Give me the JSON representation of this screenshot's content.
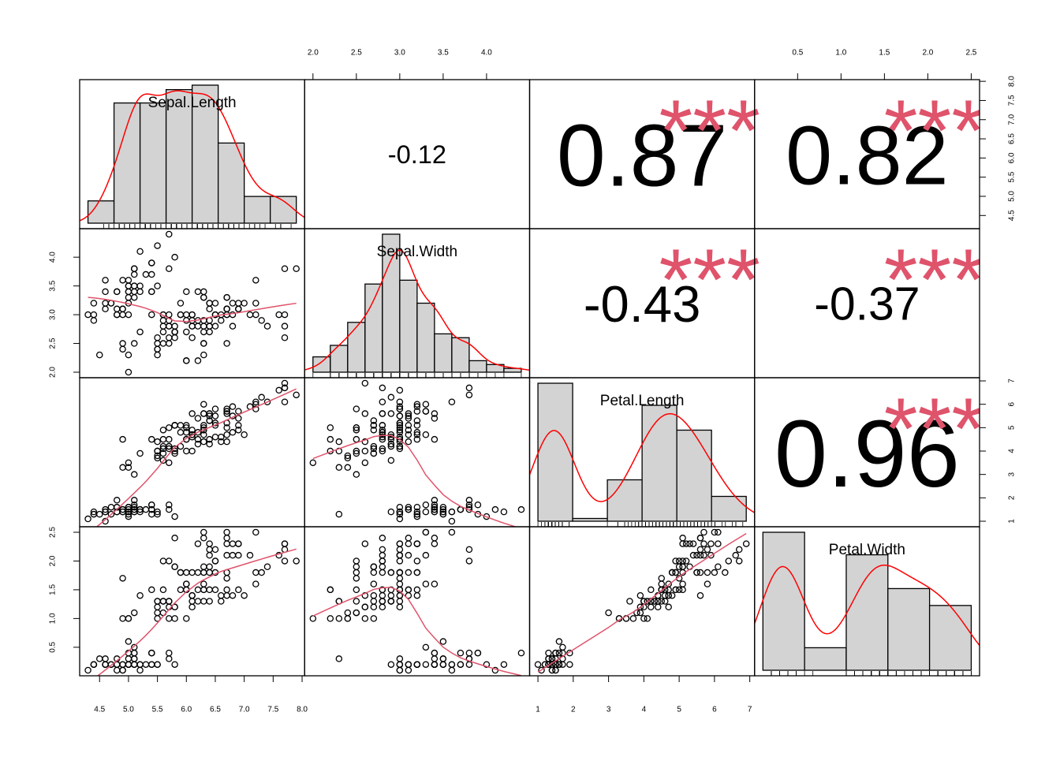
{
  "chart_data": {
    "type": "pairs",
    "hist_color": "#d3d3d3",
    "density_color": "#ff0000",
    "smooth_color": "#df536b",
    "star_color": "#df536b",
    "point_color": "#000000",
    "series": [
      {
        "name": "Sepal.Length",
        "lim": [
          4.156,
          8.044
        ],
        "ticks": [
          4.5,
          {
            "value": 5,
            "label": "5.0"
          },
          5.5,
          {
            "value": 6,
            "label": "6.0"
          },
          6.5,
          {
            "value": 7,
            "label": "7.0"
          },
          7.5,
          {
            "value": 8,
            "label": "8.0"
          }
        ],
        "hist_bins": [
          4,
          4.5,
          5,
          5.5,
          6,
          6.5,
          7,
          7.5,
          8
        ],
        "hist_counts": [
          5,
          27,
          27,
          30,
          31,
          18,
          6,
          6
        ],
        "values": [
          5.1,
          4.9,
          4.7,
          4.6,
          5.0,
          5.4,
          4.6,
          5.0,
          4.4,
          4.9,
          5.4,
          4.8,
          4.8,
          4.3,
          5.8,
          5.7,
          5.4,
          5.1,
          5.7,
          5.1,
          5.4,
          5.1,
          4.6,
          5.1,
          4.8,
          5.0,
          5.0,
          5.2,
          5.2,
          4.7,
          4.8,
          5.4,
          5.2,
          5.5,
          4.9,
          5.0,
          5.5,
          4.9,
          4.4,
          5.1,
          5.0,
          4.5,
          4.4,
          5.0,
          5.1,
          4.8,
          5.1,
          4.6,
          5.3,
          5.0,
          7.0,
          6.4,
          6.9,
          5.5,
          6.5,
          5.7,
          6.3,
          4.9,
          6.6,
          5.2,
          5.0,
          5.9,
          6.0,
          6.1,
          5.6,
          6.7,
          5.6,
          5.8,
          6.2,
          5.6,
          5.9,
          6.1,
          6.3,
          6.1,
          6.4,
          6.6,
          6.8,
          6.7,
          6.0,
          5.7,
          5.5,
          5.5,
          5.8,
          6.0,
          5.4,
          6.0,
          6.7,
          6.3,
          5.6,
          5.5,
          5.5,
          6.1,
          5.8,
          5.0,
          5.6,
          5.7,
          5.7,
          6.2,
          5.1,
          5.7,
          6.3,
          5.8,
          7.1,
          6.3,
          6.5,
          7.6,
          4.9,
          7.3,
          6.7,
          7.2,
          6.5,
          6.4,
          6.8,
          5.7,
          5.8,
          6.4,
          6.5,
          7.7,
          7.7,
          6.0,
          6.9,
          5.6,
          7.7,
          6.3,
          6.7,
          7.2,
          6.2,
          6.1,
          6.4,
          7.2,
          7.4,
          7.9,
          6.4,
          6.3,
          6.1,
          7.7,
          6.3,
          6.4,
          6.0,
          6.9,
          6.7,
          6.9,
          5.8,
          6.8,
          6.7,
          6.7,
          6.3,
          6.5,
          6.2,
          5.9
        ]
      },
      {
        "name": "Sepal.Width",
        "lim": [
          1.904,
          4.496
        ],
        "ticks": [
          {
            "value": 2,
            "label": "2.0"
          },
          2.5,
          {
            "value": 3,
            "label": "3.0"
          },
          3.5,
          {
            "value": 4,
            "label": "4.0"
          }
        ],
        "hist_bins": [
          2,
          2.2,
          2.4,
          2.6,
          2.8,
          3,
          3.2,
          3.4,
          3.6,
          3.8,
          4,
          4.2,
          4.4
        ],
        "hist_counts": [
          4,
          7,
          13,
          23,
          36,
          24,
          18,
          10,
          9,
          3,
          2,
          1
        ],
        "values": [
          3.5,
          3.0,
          3.2,
          3.1,
          3.6,
          3.9,
          3.4,
          3.4,
          2.9,
          3.1,
          3.7,
          3.4,
          3.0,
          3.0,
          4.0,
          4.4,
          3.9,
          3.5,
          3.8,
          3.8,
          3.4,
          3.7,
          3.6,
          3.3,
          3.4,
          3.0,
          3.4,
          3.5,
          3.4,
          3.2,
          3.1,
          3.4,
          4.1,
          4.2,
          3.1,
          3.2,
          3.5,
          3.6,
          3.0,
          3.4,
          3.5,
          2.3,
          3.2,
          3.5,
          3.8,
          3.0,
          3.8,
          3.2,
          3.7,
          3.3,
          3.2,
          3.2,
          3.1,
          2.3,
          2.8,
          2.8,
          3.3,
          2.4,
          2.9,
          2.7,
          2.0,
          3.0,
          2.2,
          2.9,
          2.9,
          3.1,
          3.0,
          2.7,
          2.2,
          2.5,
          3.2,
          2.8,
          2.5,
          2.8,
          2.9,
          3.0,
          2.8,
          3.0,
          2.9,
          2.6,
          2.4,
          2.4,
          2.7,
          2.7,
          3.0,
          3.4,
          3.1,
          2.3,
          3.0,
          2.5,
          2.6,
          3.0,
          2.6,
          2.3,
          2.7,
          3.0,
          2.9,
          2.9,
          2.5,
          2.8,
          3.3,
          2.7,
          3.0,
          2.9,
          3.0,
          3.0,
          2.5,
          2.9,
          2.5,
          3.6,
          3.2,
          2.7,
          3.0,
          2.5,
          2.8,
          3.2,
          3.0,
          3.8,
          2.6,
          2.2,
          3.2,
          2.8,
          2.8,
          2.7,
          3.3,
          3.2,
          2.8,
          3.0,
          2.8,
          3.0,
          2.8,
          3.8,
          2.8,
          2.8,
          2.6,
          3.0,
          3.4,
          3.1,
          3.0,
          3.1,
          3.1,
          3.1,
          2.7,
          3.2,
          3.3,
          3.0,
          2.5,
          3.0,
          3.4,
          3.0
        ]
      },
      {
        "name": "Petal.Length",
        "lim": [
          0.764,
          7.136
        ],
        "ticks": [
          1,
          2,
          3,
          4,
          5,
          6,
          7
        ],
        "hist_bins": [
          1,
          2,
          3,
          4,
          5,
          6,
          7
        ],
        "hist_counts": [
          50,
          1,
          15,
          42,
          33,
          9
        ],
        "values": [
          1.4,
          1.4,
          1.3,
          1.5,
          1.4,
          1.7,
          1.4,
          1.5,
          1.4,
          1.5,
          1.5,
          1.6,
          1.4,
          1.1,
          1.2,
          1.5,
          1.3,
          1.4,
          1.7,
          1.5,
          1.7,
          1.5,
          1.0,
          1.7,
          1.9,
          1.6,
          1.6,
          1.5,
          1.4,
          1.6,
          1.6,
          1.5,
          1.5,
          1.4,
          1.5,
          1.2,
          1.3,
          1.4,
          1.3,
          1.5,
          1.3,
          1.3,
          1.3,
          1.6,
          1.9,
          1.4,
          1.6,
          1.4,
          1.5,
          1.4,
          4.7,
          4.5,
          4.9,
          4.0,
          4.6,
          4.5,
          4.7,
          3.3,
          4.6,
          3.9,
          3.5,
          4.2,
          4.0,
          4.7,
          3.6,
          4.4,
          4.5,
          4.1,
          4.5,
          3.9,
          4.8,
          4.0,
          4.9,
          4.7,
          4.3,
          4.4,
          4.8,
          5.0,
          4.5,
          3.5,
          3.8,
          3.7,
          3.9,
          5.1,
          4.5,
          4.5,
          4.7,
          4.4,
          4.1,
          4.0,
          4.4,
          4.6,
          4.0,
          3.3,
          4.2,
          4.2,
          4.2,
          4.3,
          3.0,
          4.1,
          6.0,
          5.1,
          5.9,
          5.6,
          5.8,
          6.6,
          4.5,
          6.3,
          5.8,
          6.1,
          5.1,
          5.3,
          5.5,
          5.0,
          5.1,
          5.3,
          5.5,
          6.7,
          6.9,
          5.0,
          5.7,
          4.9,
          6.7,
          4.9,
          5.7,
          6.0,
          4.8,
          4.9,
          5.6,
          5.8,
          6.1,
          6.4,
          5.6,
          5.1,
          5.6,
          6.1,
          5.6,
          5.5,
          4.8,
          5.4,
          5.6,
          5.1,
          5.1,
          5.9,
          5.7,
          5.2,
          5.0,
          5.2,
          5.4,
          5.1
        ]
      },
      {
        "name": "Petal.Width",
        "lim": [
          0.004,
          2.596
        ],
        "ticks": [
          0.5,
          {
            "value": 1,
            "label": "1.0"
          },
          1.5,
          {
            "value": 2,
            "label": "2.0"
          },
          2.5
        ],
        "hist_bins": [
          0,
          0.5,
          1,
          1.5,
          2,
          2.5
        ],
        "hist_counts": [
          49,
          8,
          41,
          29,
          23
        ],
        "values": [
          0.2,
          0.2,
          0.2,
          0.2,
          0.2,
          0.4,
          0.3,
          0.2,
          0.2,
          0.1,
          0.2,
          0.2,
          0.1,
          0.1,
          0.2,
          0.4,
          0.4,
          0.3,
          0.3,
          0.3,
          0.2,
          0.4,
          0.2,
          0.5,
          0.2,
          0.2,
          0.4,
          0.2,
          0.2,
          0.2,
          0.2,
          0.4,
          0.1,
          0.2,
          0.2,
          0.2,
          0.2,
          0.1,
          0.2,
          0.2,
          0.3,
          0.3,
          0.2,
          0.6,
          0.4,
          0.3,
          0.2,
          0.2,
          0.2,
          0.2,
          1.4,
          1.5,
          1.5,
          1.3,
          1.5,
          1.3,
          1.6,
          1.0,
          1.3,
          1.4,
          1.0,
          1.5,
          1.0,
          1.4,
          1.3,
          1.4,
          1.5,
          1.0,
          1.5,
          1.1,
          1.8,
          1.3,
          1.5,
          1.2,
          1.3,
          1.4,
          1.4,
          1.7,
          1.5,
          1.0,
          1.1,
          1.0,
          1.2,
          1.6,
          1.5,
          1.6,
          1.5,
          1.3,
          1.3,
          1.3,
          1.2,
          1.4,
          1.2,
          1.0,
          1.3,
          1.2,
          1.3,
          1.3,
          1.1,
          1.3,
          2.5,
          1.9,
          2.1,
          1.8,
          2.2,
          2.1,
          1.7,
          1.8,
          1.8,
          2.5,
          2.0,
          1.9,
          2.1,
          2.0,
          2.4,
          2.3,
          1.8,
          2.2,
          2.3,
          1.5,
          2.3,
          2.0,
          2.0,
          1.8,
          2.1,
          1.8,
          1.8,
          1.8,
          2.1,
          1.6,
          1.9,
          2.0,
          2.2,
          1.5,
          1.4,
          2.3,
          2.4,
          1.8,
          1.8,
          2.1,
          2.4,
          2.3,
          1.9,
          2.3,
          2.5,
          2.3,
          1.9,
          2.0,
          2.3,
          1.8
        ]
      }
    ],
    "correlations": [
      {
        "value": -0.12
      },
      {
        "value": 0.87,
        "stars": "***"
      },
      {
        "value": 0.82,
        "stars": "***"
      },
      {
        "value": -0.43,
        "stars": "***"
      },
      {
        "value": -0.37,
        "stars": "***"
      },
      {
        "value": 0.96,
        "stars": "***"
      }
    ]
  }
}
